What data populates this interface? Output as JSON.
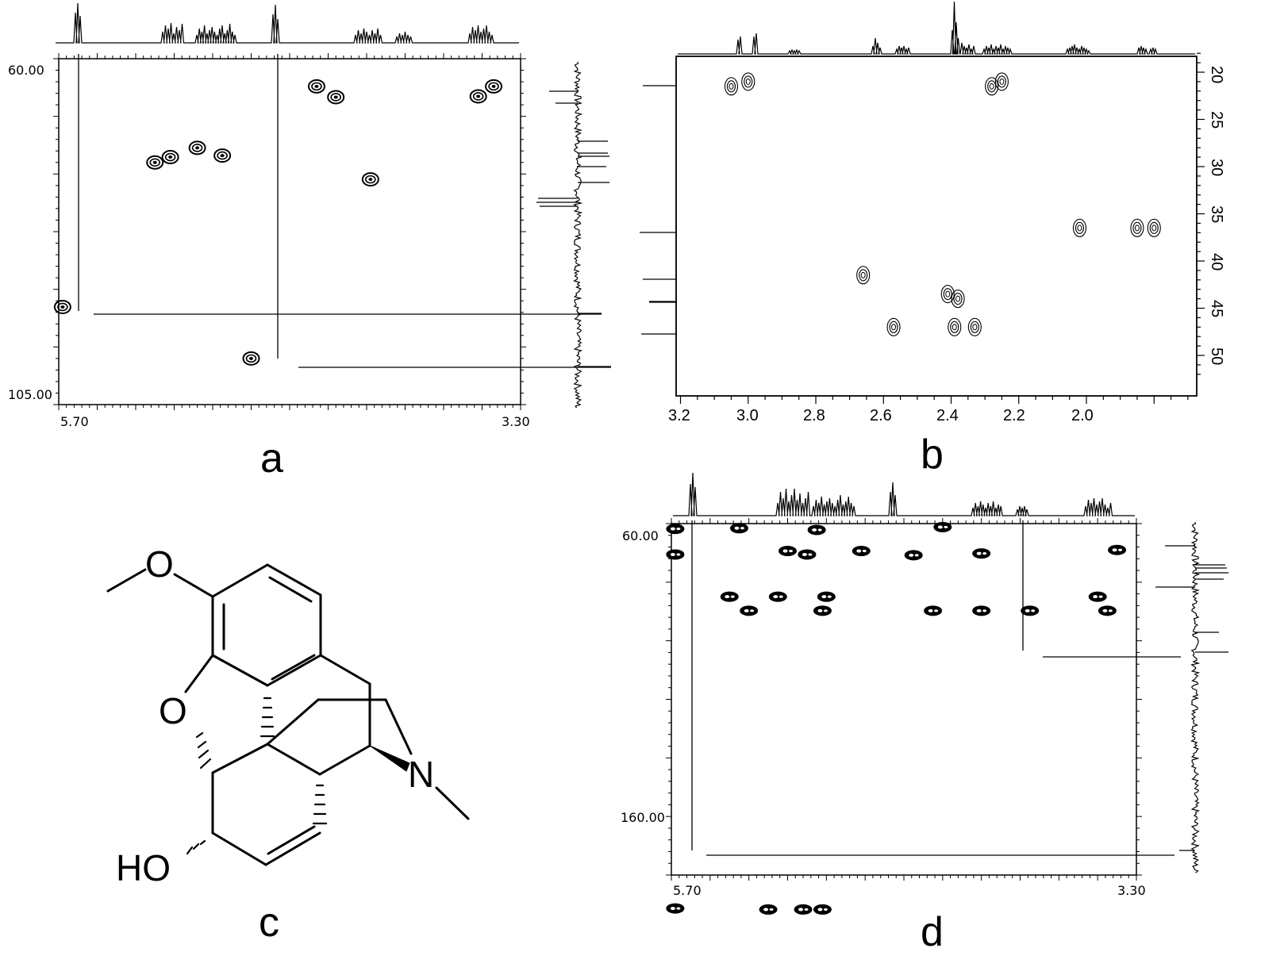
{
  "panels": {
    "a": {
      "label": "a",
      "x_axis": {
        "start_label": "5.70",
        "end_label": "3.30"
      },
      "y_axis": {
        "start_label": "60.00",
        "end_label": "105.00"
      }
    },
    "b": {
      "label": "b",
      "x_ticks": [
        "3.2",
        "3.0",
        "2.8",
        "2.6",
        "2.4",
        "2.2",
        "2.0"
      ],
      "y_ticks": [
        "20",
        "25",
        "30",
        "35",
        "40",
        "45",
        "50"
      ]
    },
    "c": {
      "label": "c",
      "atoms": {
        "methoxy_o": "O",
        "furan_o": "O",
        "nitrogen": "N",
        "hydroxyl": "HO"
      }
    },
    "d": {
      "label": "d",
      "x_axis": {
        "start_label": "5.70",
        "end_label": "3.30"
      },
      "y_axis": {
        "start_label": "60.00",
        "end_label": "160.00"
      }
    }
  },
  "chart_data": [
    {
      "panel": "a",
      "type": "scatter",
      "subtype": "2D NMR contour (HSQC)",
      "x": {
        "reversed": true,
        "range": [
          5.7,
          3.3
        ]
      },
      "y": {
        "range": [
          60.0,
          105.0
        ]
      },
      "cross_peaks": [
        {
          "x": 5.68,
          "y": 92.3
        },
        {
          "x": 4.7,
          "y": 99.0
        },
        {
          "x": 5.2,
          "y": 73.5
        },
        {
          "x": 5.12,
          "y": 72.8
        },
        {
          "x": 4.98,
          "y": 71.6
        },
        {
          "x": 4.85,
          "y": 72.6
        },
        {
          "x": 4.36,
          "y": 63.6
        },
        {
          "x": 4.26,
          "y": 65.0
        },
        {
          "x": 4.08,
          "y": 75.7
        },
        {
          "x": 3.52,
          "y": 64.9
        },
        {
          "x": 3.44,
          "y": 63.6
        }
      ]
    },
    {
      "panel": "b",
      "type": "scatter",
      "subtype": "2D NMR contour (HSQC)",
      "x": {
        "reversed": true,
        "range": [
          3.22,
          1.7
        ]
      },
      "y": {
        "range": [
          17.5,
          52.5
        ]
      },
      "cross_peaks": [
        {
          "x": 3.05,
          "y": 21.5
        },
        {
          "x": 3.0,
          "y": 21.0
        },
        {
          "x": 2.28,
          "y": 21.5
        },
        {
          "x": 2.25,
          "y": 21.0
        },
        {
          "x": 2.02,
          "y": 36.5
        },
        {
          "x": 1.85,
          "y": 36.5
        },
        {
          "x": 1.8,
          "y": 36.5
        },
        {
          "x": 2.66,
          "y": 41.5
        },
        {
          "x": 2.41,
          "y": 43.5
        },
        {
          "x": 2.38,
          "y": 44.0
        },
        {
          "x": 2.57,
          "y": 47.0
        },
        {
          "x": 2.39,
          "y": 47.0
        },
        {
          "x": 2.33,
          "y": 47.0
        }
      ]
    },
    {
      "panel": "d",
      "type": "scatter",
      "subtype": "2D NMR contour (HMBC)",
      "x": {
        "reversed": true,
        "range": [
          5.7,
          3.3
        ]
      },
      "y": {
        "range": [
          60.0,
          160.0
        ]
      },
      "cross_peaks": [
        {
          "x": 5.68,
          "y": 169.5
        },
        {
          "x": 5.2,
          "y": 169.8
        },
        {
          "x": 5.02,
          "y": 169.8
        },
        {
          "x": 4.92,
          "y": 169.8
        },
        {
          "x": 5.68,
          "y": 68.8
        },
        {
          "x": 5.68,
          "y": 61.5
        },
        {
          "x": 4.3,
          "y": 61.0
        },
        {
          "x": 4.95,
          "y": 61.8
        },
        {
          "x": 5.35,
          "y": 61.3
        },
        {
          "x": 5.0,
          "y": 68.8
        },
        {
          "x": 5.1,
          "y": 67.8
        },
        {
          "x": 4.72,
          "y": 67.8
        },
        {
          "x": 3.4,
          "y": 67.5
        },
        {
          "x": 4.45,
          "y": 69.0
        },
        {
          "x": 4.1,
          "y": 68.5
        },
        {
          "x": 5.4,
          "y": 80.8
        },
        {
          "x": 5.15,
          "y": 80.8
        },
        {
          "x": 4.9,
          "y": 80.8
        },
        {
          "x": 3.5,
          "y": 80.8
        },
        {
          "x": 5.3,
          "y": 84.8
        },
        {
          "x": 4.92,
          "y": 84.8
        },
        {
          "x": 4.35,
          "y": 84.8
        },
        {
          "x": 4.1,
          "y": 84.8
        },
        {
          "x": 3.85,
          "y": 84.8
        },
        {
          "x": 3.45,
          "y": 84.8
        }
      ]
    }
  ]
}
